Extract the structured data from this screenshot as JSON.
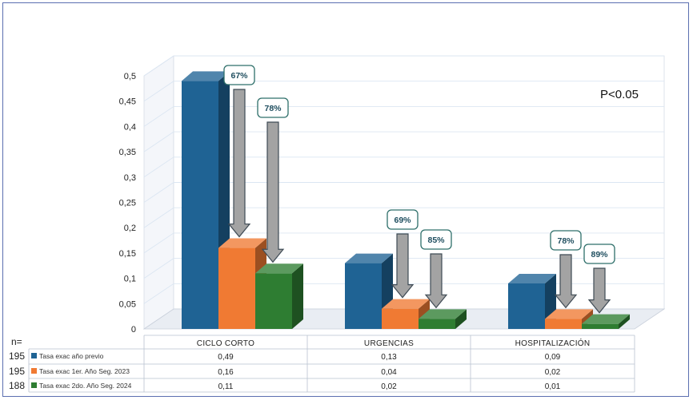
{
  "chart_data": {
    "type": "bar",
    "title": "",
    "categories": [
      "CICLO CORTO",
      "URGENCIAS",
      "HOSPITALIZACIÓN"
    ],
    "ylim": [
      0,
      0.5
    ],
    "y_ticks": [
      "0",
      "0,05",
      "0,1",
      "0,15",
      "0,2",
      "0,25",
      "0,3",
      "0,35",
      "0,4",
      "0,45",
      "0,5"
    ],
    "grid": true,
    "series": [
      {
        "name": "Tasa exac año previo",
        "values": [
          0.49,
          0.13,
          0.09
        ],
        "labels": [
          "0,49",
          "0,13",
          "0,09"
        ],
        "n": "195",
        "color": "#1f6394"
      },
      {
        "name": "Tasa exac 1er. Año Seg. 2023",
        "values": [
          0.16,
          0.04,
          0.02
        ],
        "labels": [
          "0,16",
          "0,04",
          "0,02"
        ],
        "n": "195",
        "color": "#f07a33"
      },
      {
        "name": "Tasa exac 2do. Año Seg. 2024",
        "values": [
          0.11,
          0.02,
          0.01
        ],
        "labels": [
          "0,11",
          "0,02",
          "0,01"
        ],
        "n": "188",
        "color": "#2e7d32"
      }
    ],
    "reductions": [
      {
        "category": "CICLO CORTO",
        "series": 1,
        "text": "67%"
      },
      {
        "category": "CICLO CORTO",
        "series": 2,
        "text": "78%"
      },
      {
        "category": "URGENCIAS",
        "series": 1,
        "text": "69%"
      },
      {
        "category": "URGENCIAS",
        "series": 2,
        "text": "85%"
      },
      {
        "category": "HOSPITALIZACIÓN",
        "series": 1,
        "text": "78%"
      },
      {
        "category": "HOSPITALIZACIÓN",
        "series": 2,
        "text": "89%"
      }
    ],
    "annotation": "P<0.05",
    "n_label": "n="
  }
}
